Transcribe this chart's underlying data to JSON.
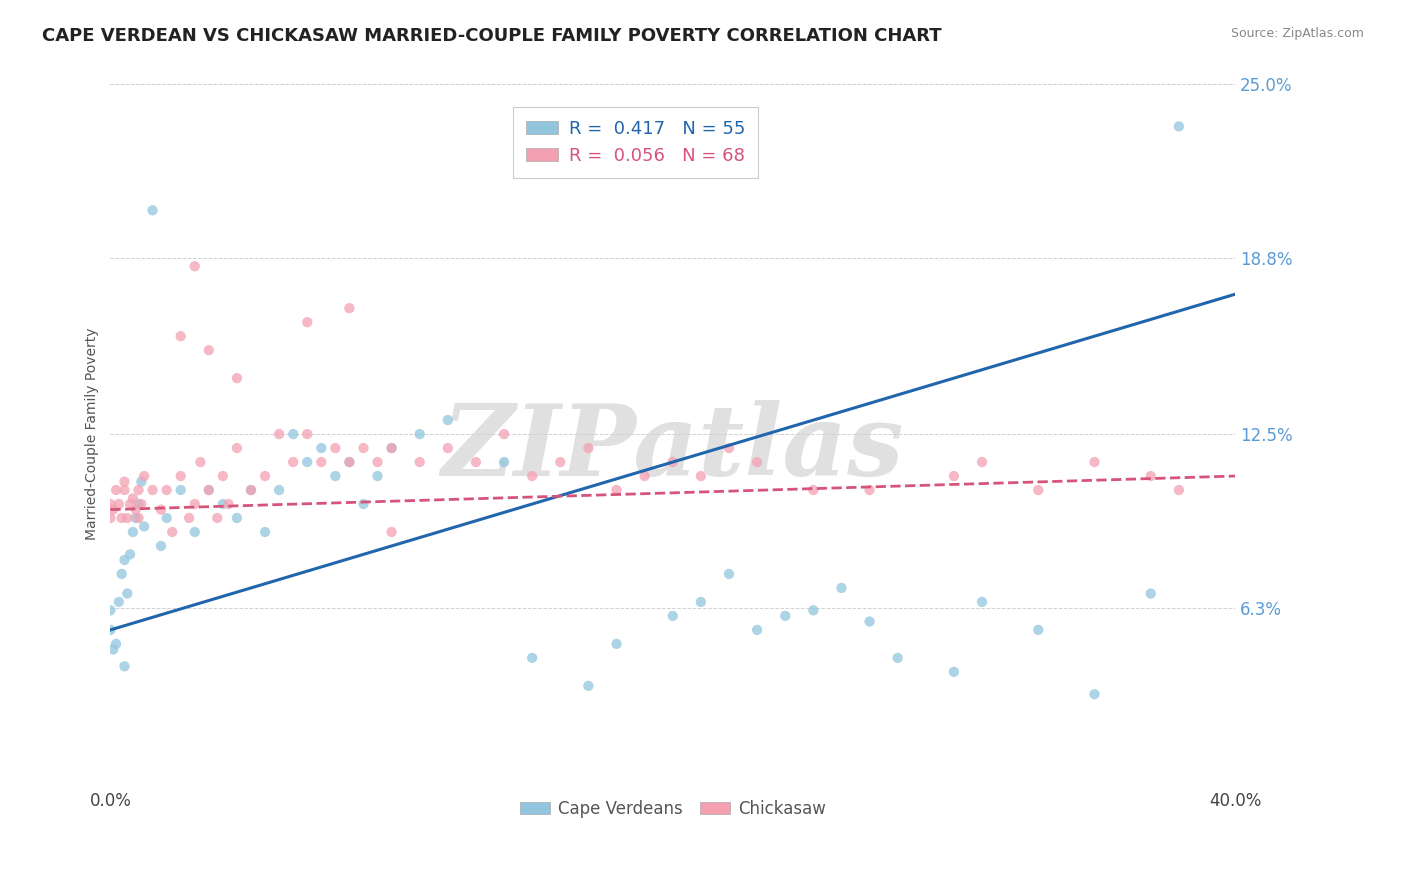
{
  "title": "CAPE VERDEAN VS CHICKASAW MARRIED-COUPLE FAMILY POVERTY CORRELATION CHART",
  "source": "Source: ZipAtlas.com",
  "ylabel": "Married-Couple Family Poverty",
  "xlim": [
    0.0,
    40.0
  ],
  "ylim": [
    0.0,
    25.0
  ],
  "yticks": [
    6.3,
    12.5,
    18.8,
    25.0
  ],
  "watermark": "ZIPatlas",
  "cape_verdean": {
    "name": "Cape Verdeans",
    "color": "#92c5de",
    "R": 0.417,
    "N": 55,
    "x": [
      0.0,
      0.0,
      0.1,
      0.2,
      0.3,
      0.4,
      0.5,
      0.5,
      0.6,
      0.7,
      0.8,
      0.9,
      1.0,
      1.1,
      1.2,
      1.5,
      1.8,
      2.0,
      2.5,
      3.0,
      3.5,
      4.0,
      4.5,
      5.0,
      5.5,
      6.0,
      6.5,
      7.0,
      7.5,
      8.0,
      8.5,
      9.0,
      9.5,
      10.0,
      11.0,
      12.0,
      14.0,
      15.0,
      17.0,
      18.0,
      20.0,
      21.0,
      22.0,
      23.0,
      24.0,
      25.0,
      26.0,
      27.0,
      28.0,
      30.0,
      31.0,
      33.0,
      35.0,
      37.0,
      38.0
    ],
    "y": [
      5.5,
      6.2,
      4.8,
      5.0,
      6.5,
      7.5,
      8.0,
      4.2,
      6.8,
      8.2,
      9.0,
      9.5,
      10.0,
      10.8,
      9.2,
      20.5,
      8.5,
      9.5,
      10.5,
      9.0,
      10.5,
      10.0,
      9.5,
      10.5,
      9.0,
      10.5,
      12.5,
      11.5,
      12.0,
      11.0,
      11.5,
      10.0,
      11.0,
      12.0,
      12.5,
      13.0,
      11.5,
      4.5,
      3.5,
      5.0,
      6.0,
      6.5,
      7.5,
      5.5,
      6.0,
      6.2,
      7.0,
      5.8,
      4.5,
      4.0,
      6.5,
      5.5,
      3.2,
      6.8,
      23.5
    ],
    "trend_x": [
      0.0,
      40.0
    ],
    "trend_y": [
      5.5,
      17.5
    ],
    "line_color": "#2166ac",
    "line_style": "-"
  },
  "chickasaw": {
    "name": "Chickasaw",
    "color": "#f4a0b0",
    "R": 0.056,
    "N": 68,
    "x": [
      0.0,
      0.0,
      0.1,
      0.2,
      0.3,
      0.4,
      0.5,
      0.5,
      0.6,
      0.7,
      0.8,
      0.9,
      1.0,
      1.0,
      1.1,
      1.2,
      1.5,
      1.8,
      2.0,
      2.2,
      2.5,
      2.8,
      3.0,
      3.2,
      3.5,
      3.8,
      4.0,
      4.2,
      4.5,
      5.0,
      5.5,
      6.0,
      6.5,
      7.0,
      7.5,
      8.0,
      8.5,
      9.0,
      9.5,
      10.0,
      11.0,
      12.0,
      13.0,
      14.0,
      15.0,
      16.0,
      17.0,
      18.0,
      19.0,
      20.0,
      21.0,
      22.0,
      23.0,
      25.0,
      27.0,
      30.0,
      31.0,
      33.0,
      35.0,
      37.0,
      38.0,
      10.0,
      8.5,
      7.0,
      4.5,
      3.5,
      3.0,
      2.5
    ],
    "y": [
      9.5,
      10.0,
      9.8,
      10.5,
      10.0,
      9.5,
      10.5,
      10.8,
      9.5,
      10.0,
      10.2,
      9.8,
      10.5,
      9.5,
      10.0,
      11.0,
      10.5,
      9.8,
      10.5,
      9.0,
      11.0,
      9.5,
      10.0,
      11.5,
      10.5,
      9.5,
      11.0,
      10.0,
      12.0,
      10.5,
      11.0,
      12.5,
      11.5,
      12.5,
      11.5,
      12.0,
      11.5,
      12.0,
      11.5,
      12.0,
      11.5,
      12.0,
      11.5,
      12.5,
      11.0,
      11.5,
      12.0,
      10.5,
      11.0,
      11.5,
      11.0,
      12.0,
      11.5,
      10.5,
      10.5,
      11.0,
      11.5,
      10.5,
      11.5,
      11.0,
      10.5,
      9.0,
      17.0,
      16.5,
      14.5,
      15.5,
      18.5,
      16.0
    ],
    "trend_x": [
      0.0,
      40.0
    ],
    "trend_y": [
      9.8,
      11.0
    ],
    "line_color": "#d6547a",
    "line_style": "--"
  },
  "title_fontsize": 13,
  "axis_label_fontsize": 10,
  "tick_fontsize": 12,
  "bg_color": "#ffffff",
  "grid_color": "#d0d0d0",
  "watermark_color": "#e0e0e0",
  "right_tick_color": "#5b9bd5"
}
